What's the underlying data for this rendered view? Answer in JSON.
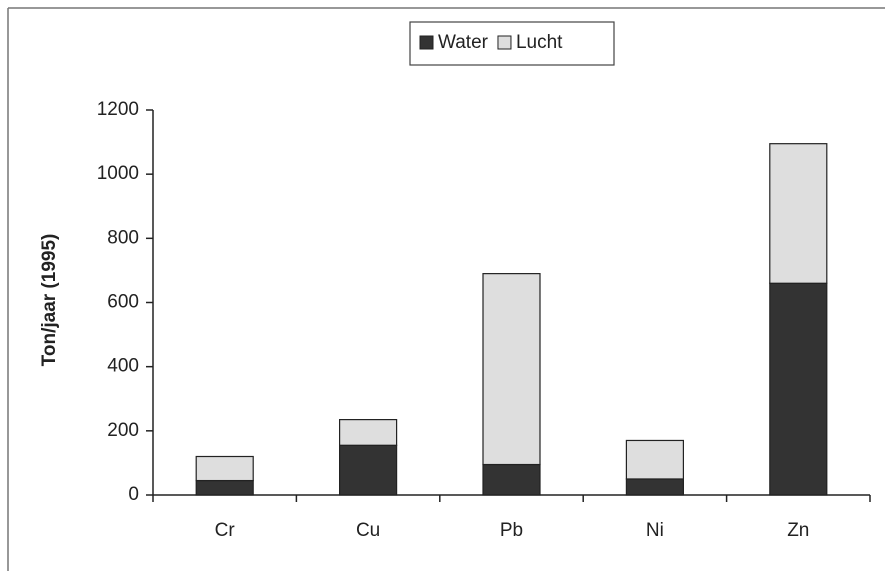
{
  "chart_data": {
    "type": "stacked_bar",
    "y_label": "Ton/jaar (1995)",
    "categories": [
      "Cr",
      "Cu",
      "Pb",
      "Ni",
      "Zn"
    ],
    "series": [
      {
        "name": "Water",
        "color": "#333333",
        "values": [
          45,
          155,
          95,
          50,
          660
        ]
      },
      {
        "name": "Lucht",
        "color": "#dedede",
        "values": [
          75,
          80,
          595,
          120,
          435
        ]
      }
    ],
    "ylim": [
      0,
      1200
    ],
    "yticks": [
      0,
      200,
      400,
      600,
      800,
      1000,
      1200
    ],
    "legend": "top"
  }
}
